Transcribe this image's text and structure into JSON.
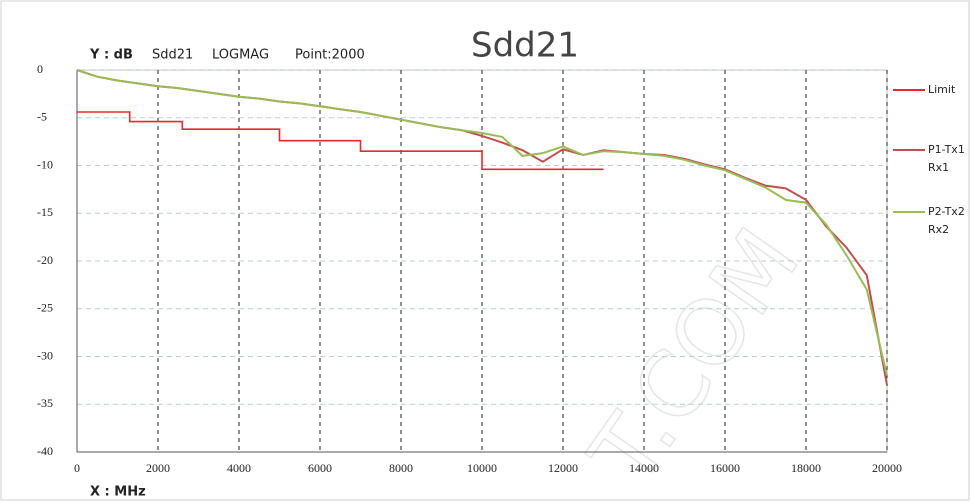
{
  "chart_data": {
    "type": "line",
    "title": "Sdd21",
    "header": [
      "Y : dB",
      "Sdd21",
      "LOGMAG",
      "Point:2000"
    ],
    "xlabel": "X : MHz",
    "watermark": "T.COM",
    "xlim": [
      0,
      20000
    ],
    "xticks": [
      0,
      2000,
      4000,
      6000,
      8000,
      10000,
      12000,
      14000,
      16000,
      18000,
      20000
    ],
    "ylim": [
      -40,
      0
    ],
    "yticks": [
      0,
      -5,
      -10,
      -15,
      -20,
      -25,
      -30,
      -35,
      -40
    ],
    "grid": true,
    "legend": "right",
    "series": [
      {
        "name": "Limit",
        "color": "#e8282a",
        "x": [
          0,
          1300,
          1300,
          2600,
          2600,
          5000,
          5000,
          7000,
          7000,
          10000,
          10000,
          13000
        ],
        "values": [
          -4.4,
          -4.4,
          -5.4,
          -5.4,
          -6.2,
          -6.2,
          -7.4,
          -7.4,
          -8.5,
          -8.5,
          -10.4,
          -10.4
        ]
      },
      {
        "name": "P1-Tx1 Rx1",
        "color": "#c0504d",
        "x": [
          0,
          500,
          1000,
          1500,
          2000,
          2500,
          3000,
          3500,
          4000,
          4500,
          5000,
          5500,
          6000,
          6500,
          7000,
          7500,
          8000,
          8500,
          9000,
          9500,
          10000,
          10500,
          11000,
          11500,
          12000,
          12500,
          13000,
          13500,
          14000,
          14500,
          15000,
          15500,
          16000,
          16500,
          17000,
          17500,
          18000,
          18500,
          19000,
          19500,
          20000
        ],
        "values": [
          0,
          -0.7,
          -1.1,
          -1.4,
          -1.7,
          -1.9,
          -2.2,
          -2.5,
          -2.8,
          -3.0,
          -3.3,
          -3.5,
          -3.8,
          -4.1,
          -4.4,
          -4.8,
          -5.2,
          -5.6,
          -6.0,
          -6.3,
          -6.9,
          -7.6,
          -8.4,
          -9.6,
          -8.3,
          -8.9,
          -8.4,
          -8.6,
          -8.8,
          -8.9,
          -9.3,
          -9.9,
          -10.4,
          -11.3,
          -12.1,
          -12.4,
          -13.6,
          -16.4,
          -18.6,
          -21.5,
          -33
        ]
      },
      {
        "name": "P2-Tx2 Rx2",
        "color": "#9bbb59",
        "x": [
          0,
          500,
          1000,
          1500,
          2000,
          2500,
          3000,
          3500,
          4000,
          4500,
          5000,
          5500,
          6000,
          6500,
          7000,
          7500,
          8000,
          8500,
          9000,
          9500,
          10000,
          10500,
          11000,
          11500,
          12000,
          12500,
          13000,
          13500,
          14000,
          14500,
          15000,
          15500,
          16000,
          16500,
          17000,
          17500,
          18000,
          18500,
          19000,
          19500,
          20000
        ],
        "values": [
          0,
          -0.7,
          -1.1,
          -1.4,
          -1.7,
          -1.9,
          -2.2,
          -2.5,
          -2.8,
          -3.0,
          -3.3,
          -3.5,
          -3.8,
          -4.1,
          -4.4,
          -4.8,
          -5.2,
          -5.6,
          -6.0,
          -6.3,
          -6.6,
          -7.0,
          -9.0,
          -8.7,
          -8.0,
          -8.9,
          -8.5,
          -8.6,
          -8.8,
          -9.0,
          -9.4,
          -10.0,
          -10.5,
          -11.4,
          -12.3,
          -13.6,
          -13.9,
          -16.2,
          -19.4,
          -23,
          -32
        ]
      }
    ]
  }
}
